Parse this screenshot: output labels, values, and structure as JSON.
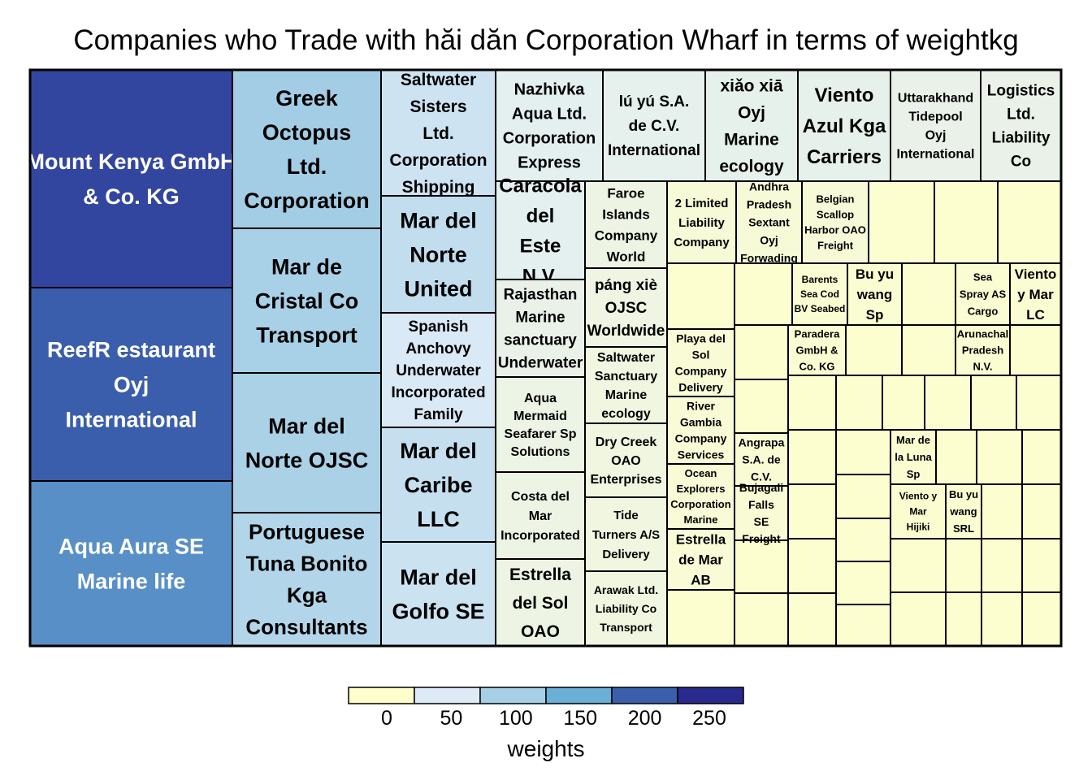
{
  "chart_data": {
    "type": "treemap",
    "title": "Companies who Trade with hăi dăn Corporation Wharf in terms of weightkg",
    "colorbar": {
      "label": "weights",
      "ticks": [
        0,
        50,
        100,
        150,
        200,
        250
      ],
      "range": [
        0,
        280
      ],
      "colors": [
        "#ffffcc",
        "#deebf7",
        "#a6cfe5",
        "#6baed6",
        "#3b5fad",
        "#2a2a8e"
      ]
    },
    "items": [
      {
        "name": "Mount Kenya GmbH & Co. KG",
        "weight": 250
      },
      {
        "name": "ReefR estaurant Oyj International",
        "weight": 225
      },
      {
        "name": "Aqua Aura SE Marine life",
        "weight": 190
      },
      {
        "name": "Greek Octopus Ltd. Corporation",
        "weight": 115
      },
      {
        "name": "Mar de Cristal Co Transport",
        "weight": 110
      },
      {
        "name": "Mar del Norte OJSC",
        "weight": 108
      },
      {
        "name": "Portuguese Tuna Bonito Kga Consultants",
        "weight": 100
      },
      {
        "name": "Saltwater Sisters Ltd. Corporation Shipping",
        "weight": 72
      },
      {
        "name": "Mar del Norte United",
        "weight": 85
      },
      {
        "name": "Spanish Anchovy Underwater Incorporated Family",
        "weight": 60
      },
      {
        "name": "Mar del Caribe LLC",
        "weight": 80
      },
      {
        "name": "Mar del Golfo SE",
        "weight": 75
      },
      {
        "name": "Nazhivka Aqua Ltd. Corporation Express",
        "weight": 45
      },
      {
        "name": "lú yú S.A. de C.V. International",
        "weight": 42
      },
      {
        "name": "xiǎo xiā Oyj Marine ecology",
        "weight": 40
      },
      {
        "name": "Viento Azul Kga Carriers",
        "weight": 40
      },
      {
        "name": "Uttarakhand Tidepool Oyj International",
        "weight": 38
      },
      {
        "name": "Logistics Ltd. Liability Co",
        "weight": 38
      },
      {
        "name": "Caracola del Este N.V.",
        "weight": 45
      },
      {
        "name": "Rajasthan Marine sanctuary Underwater",
        "weight": 38
      },
      {
        "name": "Aqua Mermaid Seafarer Sp Solutions",
        "weight": 32
      },
      {
        "name": "Costa del Mar Incorporated",
        "weight": 30
      },
      {
        "name": "Estrella del Sol OAO",
        "weight": 30
      },
      {
        "name": "Faroe Islands Company World",
        "weight": 30
      },
      {
        "name": "páng xiè OJSC Worldwide",
        "weight": 28
      },
      {
        "name": "Saltwater Sanctuary Marine ecology",
        "weight": 26
      },
      {
        "name": "Dry Creek OAO Enterprises",
        "weight": 26
      },
      {
        "name": "Tide Turners A/S Delivery",
        "weight": 25
      },
      {
        "name": "Arawak Ltd. Liability Co Transport",
        "weight": 25
      },
      {
        "name": "2 Limited Liability Company",
        "weight": 14
      },
      {
        "name": "Andhra Pradesh Sextant Oyj Forwading",
        "weight": 14
      },
      {
        "name": "Belgian Scallop Harbor OAO Freight",
        "weight": 14
      },
      {
        "name": "Playa del Sol Company Delivery",
        "weight": 12
      },
      {
        "name": "River Gambia Company Services",
        "weight": 12
      },
      {
        "name": "Ocean Explorers Corporation Marine",
        "weight": 12
      },
      {
        "name": "Estrella de Mar AB",
        "weight": 12
      },
      {
        "name": "Angrapa S.A. de C.V.",
        "weight": 10
      },
      {
        "name": "Bujagali Falls SE Freight",
        "weight": 10
      },
      {
        "name": "Barents Sea Cod BV Seabed",
        "weight": 8
      },
      {
        "name": "Bu yu wang Sp",
        "weight": 8
      },
      {
        "name": "Sea Spray AS Cargo",
        "weight": 8
      },
      {
        "name": "Viento y Mar LC",
        "weight": 8
      },
      {
        "name": "Paradera GmbH & Co. KG",
        "weight": 8
      },
      {
        "name": "Arunachal Pradesh N.V.",
        "weight": 8
      },
      {
        "name": "Mar de la Luna Sp",
        "weight": 7
      },
      {
        "name": "Viento y Mar Hijiki",
        "weight": 7
      },
      {
        "name": "Bu yu wang SRL",
        "weight": 7
      }
    ]
  }
}
